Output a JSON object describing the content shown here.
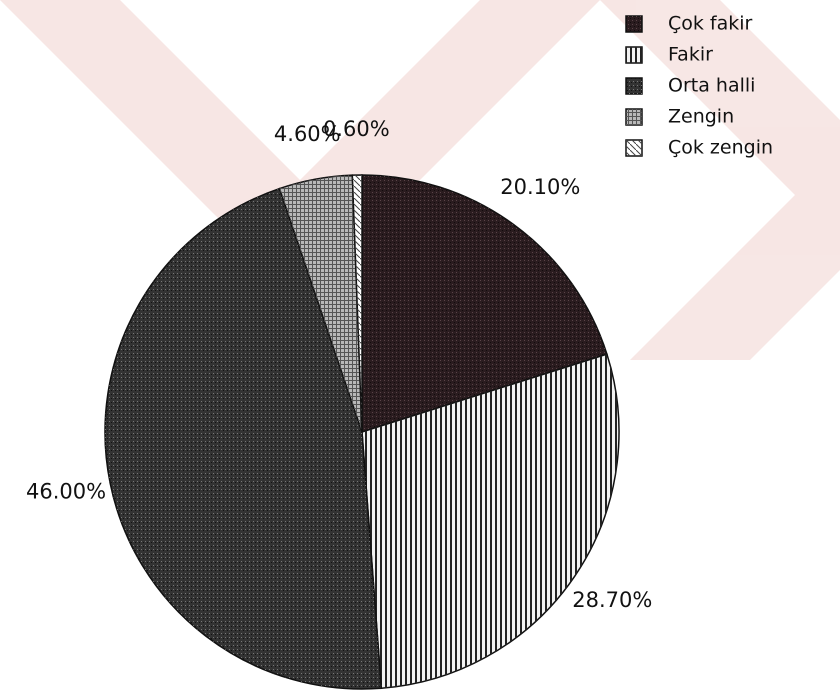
{
  "chart_data": {
    "type": "pie",
    "categories": [
      "Çok fakir",
      "Fakir",
      "Orta halli",
      "Zengin",
      "Çok zengin"
    ],
    "values": [
      20.1,
      28.7,
      46.0,
      4.6,
      0.6
    ],
    "value_labels": [
      "20.10%",
      "28.70%",
      "46.00%",
      "4.60%",
      "0.60%"
    ],
    "colors": [
      "#2a1c1f",
      "#f2f2f2",
      "#333333",
      "#b8b8b8",
      "#ffffff"
    ],
    "legend": "top-right"
  }
}
